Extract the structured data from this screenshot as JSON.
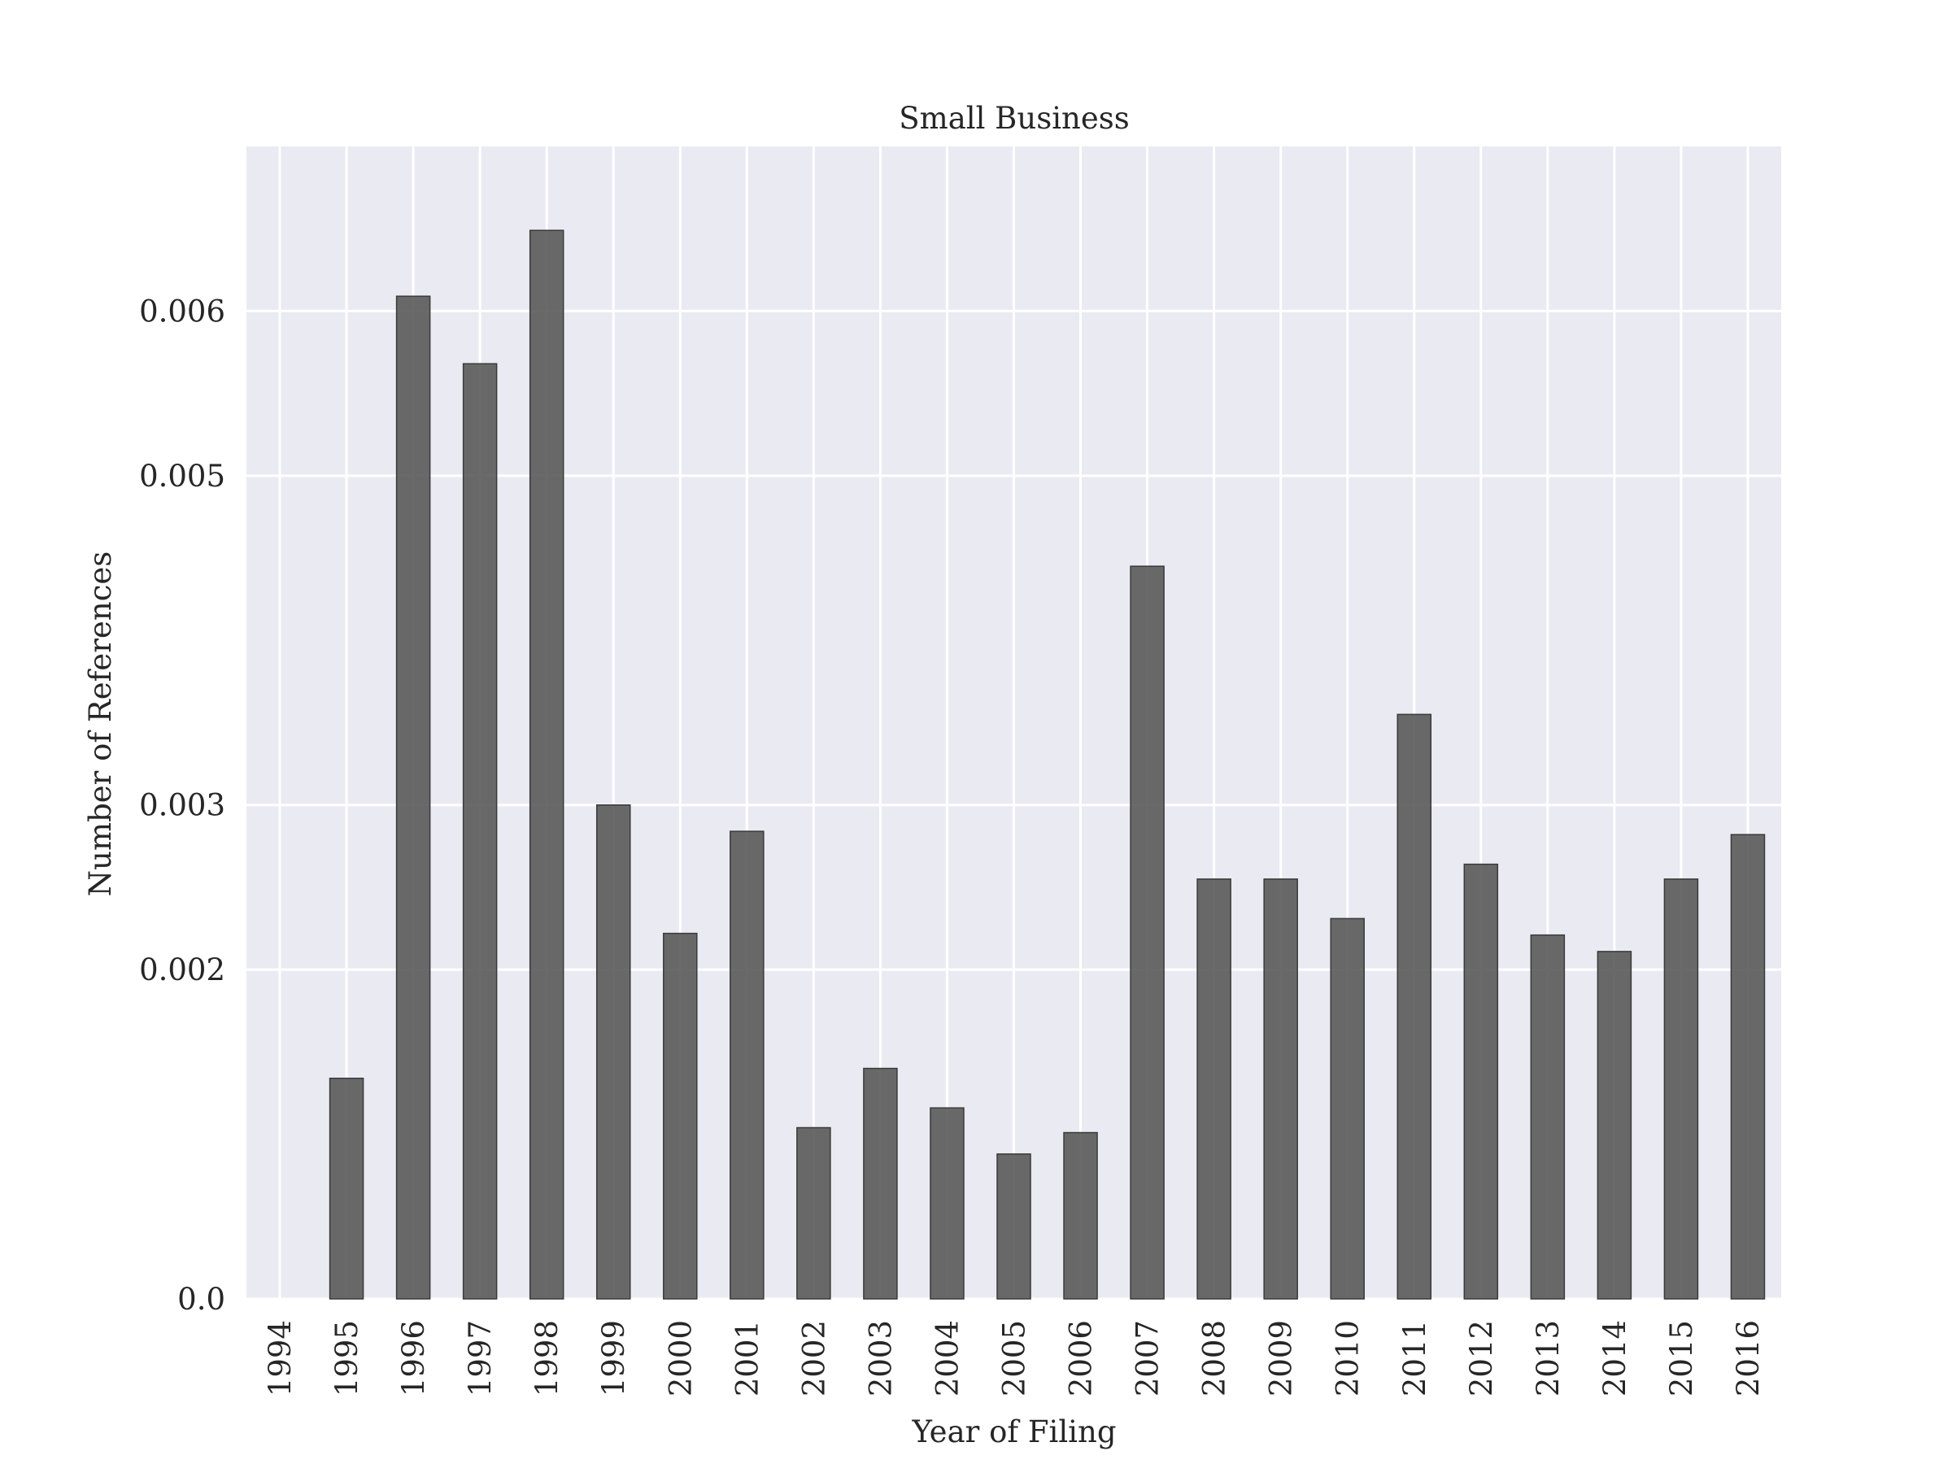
{
  "chart_data": {
    "type": "bar",
    "title": "Small Business",
    "xlabel": "Year of Filing",
    "ylabel": "Number of References",
    "categories": [
      "1994",
      "1995",
      "1996",
      "1997",
      "1998",
      "1999",
      "2000",
      "2001",
      "2002",
      "2003",
      "2004",
      "2005",
      "2006",
      "2007",
      "2008",
      "2009",
      "2010",
      "2011",
      "2012",
      "2013",
      "2014",
      "2015",
      "2016"
    ],
    "values": [
      0.0,
      0.00134,
      0.00609,
      0.00568,
      0.00649,
      0.003,
      0.00222,
      0.00284,
      0.00104,
      0.0014,
      0.00116,
      0.00088,
      0.00101,
      0.00445,
      0.00255,
      0.00255,
      0.00231,
      0.00355,
      0.00264,
      0.00221,
      0.00211,
      0.00255,
      0.00282
    ],
    "yticks": [
      0.0,
      0.002,
      0.003,
      0.005,
      0.006
    ],
    "ytick_labels": [
      "0.0",
      "0.002",
      "0.003",
      "0.005",
      "0.006"
    ],
    "ylim": [
      0.0,
      0.007
    ],
    "grid": true,
    "bar_color": "#5a5a5a",
    "background_color": "#eaeaf2",
    "grid_color": "#ffffff"
  }
}
